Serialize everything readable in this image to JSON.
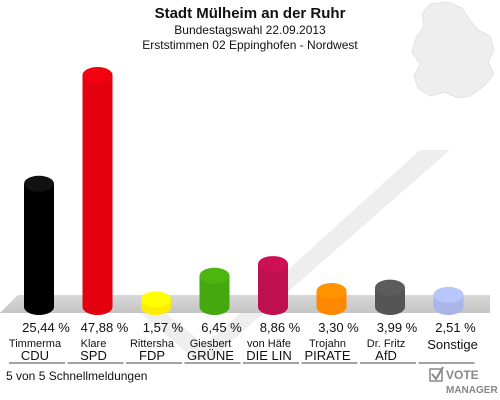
{
  "title": "Stadt Mülheim an der Ruhr",
  "subtitle1": "Bundestagswahl 22.09.2013",
  "subtitle2": "Erststimmen 02 Eppinghofen - Nordwest",
  "footer": "5 von 5 Schnellmeldungen",
  "logo": {
    "line1": "VOTE",
    "line2": "MANAGER"
  },
  "chart_data": {
    "type": "bar",
    "categories": [
      "CDU",
      "SPD",
      "FDP",
      "GRÜNE",
      "DIE LIN",
      "PIRATE",
      "AfD",
      "Sonstige"
    ],
    "candidates": [
      "Timmerma",
      "Klare",
      "Rittersha",
      "Giesbert",
      "von Häfe",
      "Trojahn",
      "Dr. Fritz",
      ""
    ],
    "values": [
      25.44,
      47.88,
      1.57,
      6.45,
      8.86,
      3.3,
      3.99,
      2.51
    ],
    "value_labels": [
      "25,44 %",
      "47,88 %",
      "1,57 %",
      "6,45 %",
      "8,86 %",
      "3,30 %",
      "3,99 %",
      "2,51 %"
    ],
    "colors": [
      "#000000",
      "#e3000f",
      "#ffed00",
      "#46a80f",
      "#be0f4f",
      "#ff8800",
      "#555555",
      "#a9b7e8"
    ],
    "ylim": [
      0,
      50
    ]
  }
}
